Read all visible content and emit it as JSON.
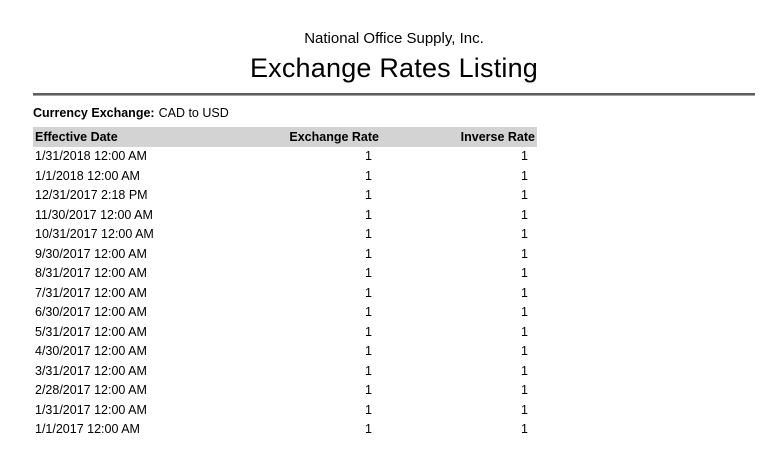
{
  "report": {
    "company": "National Office Supply, Inc.",
    "title": "Exchange Rates Listing",
    "filter_label": "Currency Exchange:",
    "filter_value": "CAD to USD"
  },
  "table": {
    "columns": [
      "Effective Date",
      "Exchange Rate",
      "Inverse Rate"
    ],
    "rows": [
      [
        "1/31/2018 12:00 AM",
        "1",
        "1"
      ],
      [
        "1/1/2018 12:00 AM",
        "1",
        "1"
      ],
      [
        "12/31/2017 2:18 PM",
        "1",
        "1"
      ],
      [
        "11/30/2017 12:00 AM",
        "1",
        "1"
      ],
      [
        "10/31/2017 12:00 AM",
        "1",
        "1"
      ],
      [
        "9/30/2017 12:00 AM",
        "1",
        "1"
      ],
      [
        "8/31/2017 12:00 AM",
        "1",
        "1"
      ],
      [
        "7/31/2017 12:00 AM",
        "1",
        "1"
      ],
      [
        "6/30/2017 12:00 AM",
        "1",
        "1"
      ],
      [
        "5/31/2017 12:00 AM",
        "1",
        "1"
      ],
      [
        "4/30/2017 12:00 AM",
        "1",
        "1"
      ],
      [
        "3/31/2017 12:00 AM",
        "1",
        "1"
      ],
      [
        "2/28/2017 12:00 AM",
        "1",
        "1"
      ],
      [
        "1/31/2017 12:00 AM",
        "1",
        "1"
      ],
      [
        "1/1/2017 12:00 AM",
        "1",
        "1"
      ]
    ]
  },
  "colors": {
    "table_header_background": "#d3d3d3",
    "rule_dark": "#5e5e5e",
    "rule_light": "#a3a3a3",
    "text": "#000000",
    "page_background": "#ffffff"
  }
}
